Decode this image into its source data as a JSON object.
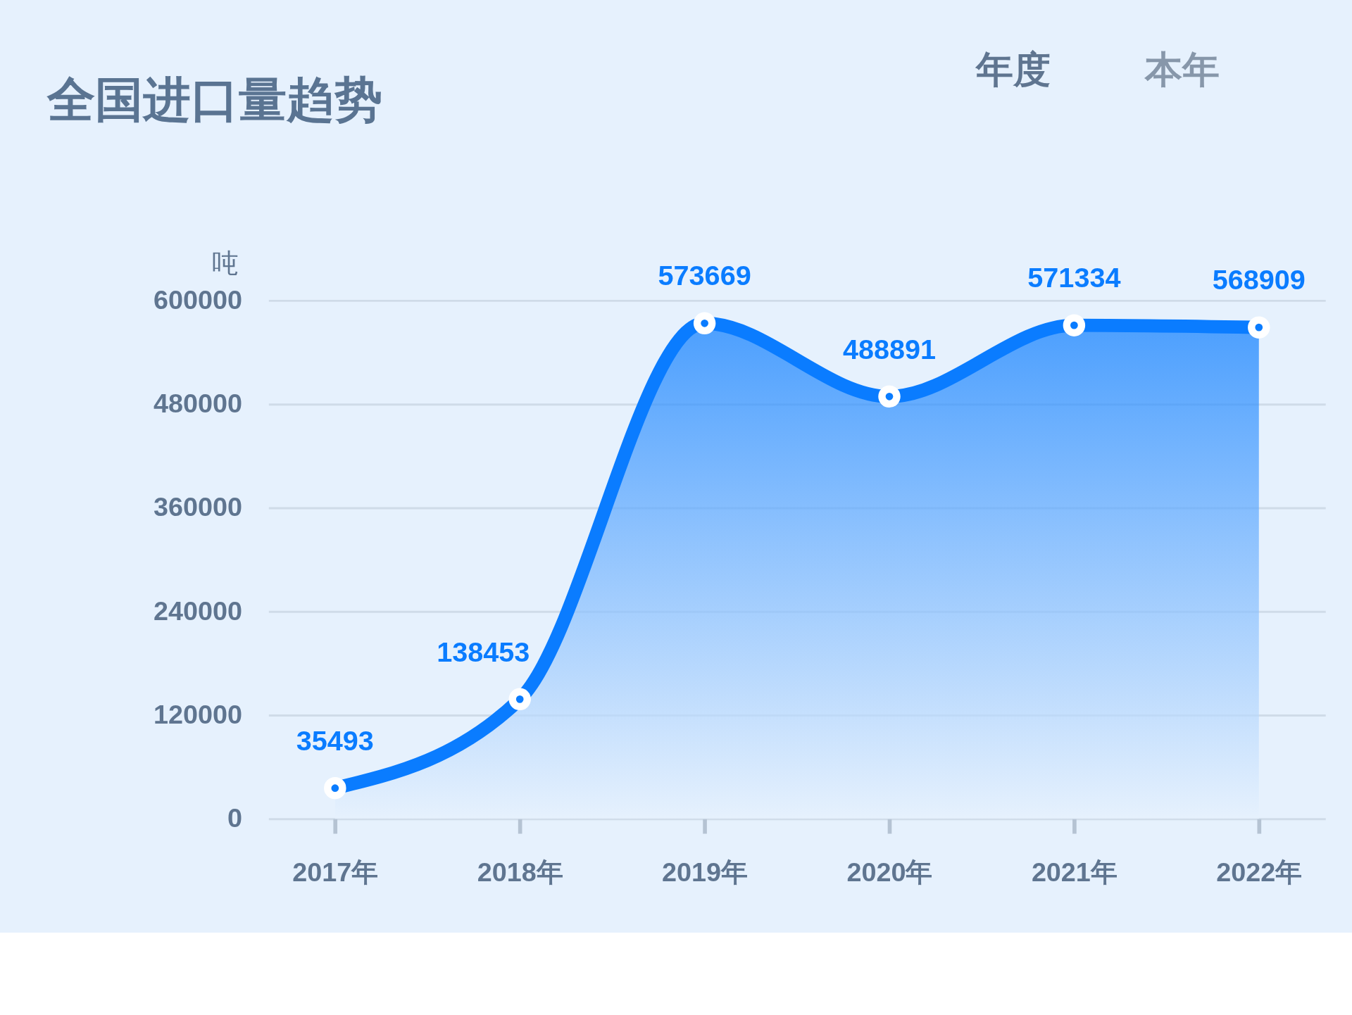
{
  "chart_data": {
    "type": "area",
    "title": "全国进口量趋势",
    "ylabel": "吨",
    "annotations": [
      "年度",
      "本年"
    ],
    "categories": [
      "2017年",
      "2018年",
      "2019年",
      "2020年",
      "2021年",
      "2022年"
    ],
    "series": [
      {
        "color": "#0a7cff",
        "values": [
          35493,
          138453,
          573669,
          488891,
          571334,
          568909
        ]
      }
    ],
    "ylim": [
      0,
      600000
    ],
    "yticks": [
      0,
      120000,
      240000,
      360000,
      480000,
      600000
    ],
    "grid": "y",
    "marker": "circle",
    "line_style": "solid",
    "data_labels": true
  }
}
